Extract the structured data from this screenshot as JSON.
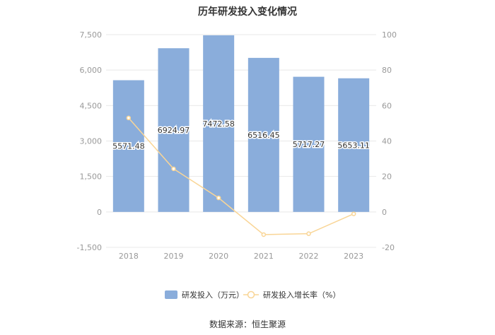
{
  "title": "历年研发投入变化情况",
  "source": "数据来源：恒生聚源",
  "colors": {
    "bar": "#8aaddb",
    "line": "#f9d596",
    "grid": "#e8e8e8",
    "axis_text": "#999999"
  },
  "chart_data": {
    "type": "bar",
    "categories": [
      "2018",
      "2019",
      "2020",
      "2021",
      "2022",
      "2023"
    ],
    "series": [
      {
        "name": "研发投入（万元）",
        "type": "bar",
        "axis": "left",
        "values": [
          5571.48,
          6924.97,
          7472.58,
          6516.45,
          5717.27,
          5653.11
        ],
        "labels": [
          "5571.48",
          "6924.97",
          "7472.58",
          "6516.45",
          "5717.27",
          "5653.11"
        ]
      },
      {
        "name": "研发投入增长率（%）",
        "type": "line",
        "axis": "right",
        "values": [
          53.0,
          24.3,
          7.9,
          -12.8,
          -12.3,
          -1.1
        ]
      }
    ],
    "ylim_left": [
      -1500,
      7500
    ],
    "yticks_left": [
      "-1,500",
      "0",
      "1,500",
      "3,000",
      "4,500",
      "6,000",
      "7,500"
    ],
    "ylim_right": [
      -20,
      100
    ],
    "yticks_right": [
      "-20",
      "0",
      "20",
      "40",
      "60",
      "80",
      "100"
    ],
    "grid": true,
    "legend_position": "bottom"
  }
}
